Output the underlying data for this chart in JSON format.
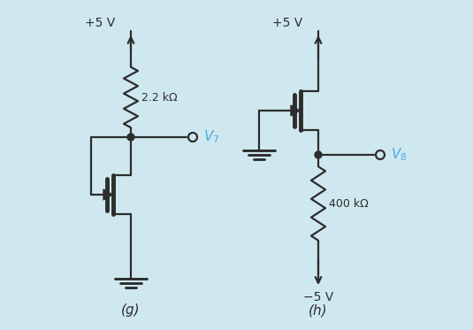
{
  "bg_color": "#cfe8f0",
  "line_color": "#2d2d2d",
  "voltage_color": "#4aa8d8",
  "label_g": "(g)",
  "label_h": "(h)",
  "r1_label": "2.2 kΩ",
  "r2_label": "400 kΩ",
  "vdd_label": "+5 V",
  "vss_label": "−5 V",
  "v7_label": "V_7",
  "v8_label": "V_8"
}
